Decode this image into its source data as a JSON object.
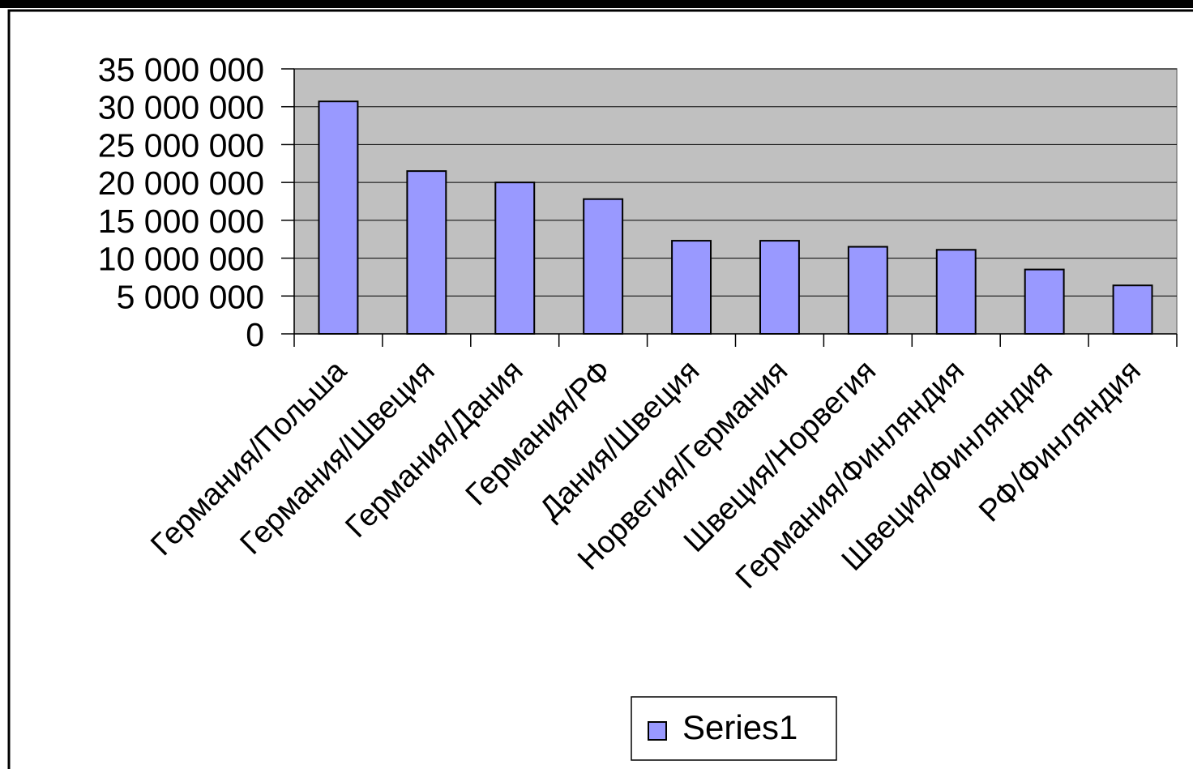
{
  "chart_data": {
    "type": "bar",
    "categories": [
      "Германия/Польша",
      "Германия/Швеция",
      "Германия/Дания",
      "Германия/РФ",
      "Дания/Швеция",
      "Норвегия/Германия",
      "Швеция/Норвегия",
      "Германия/Финляндия",
      "Швеция/Финляндия",
      "РФ/Финляндия"
    ],
    "series": [
      {
        "name": "Series1",
        "values": [
          30700000,
          21500000,
          20000000,
          17800000,
          12300000,
          12300000,
          11500000,
          11100000,
          8500000,
          6400000
        ]
      }
    ],
    "ylim": [
      0,
      35000000
    ],
    "ytick_labels": [
      "0",
      "5 000 000",
      "10 000 000",
      "15 000 000",
      "20 000 000",
      "25 000 000",
      "30 000 000",
      "35 000 000"
    ],
    "title": "",
    "xlabel": "",
    "ylabel": "",
    "grid": true,
    "legend_position": "bottom",
    "colors": {
      "bar_fill": "#9999ff",
      "bar_stroke": "#000000",
      "plot_background": "#c0c0c0",
      "plot_border": "#808080",
      "gridline": "#000000"
    }
  }
}
